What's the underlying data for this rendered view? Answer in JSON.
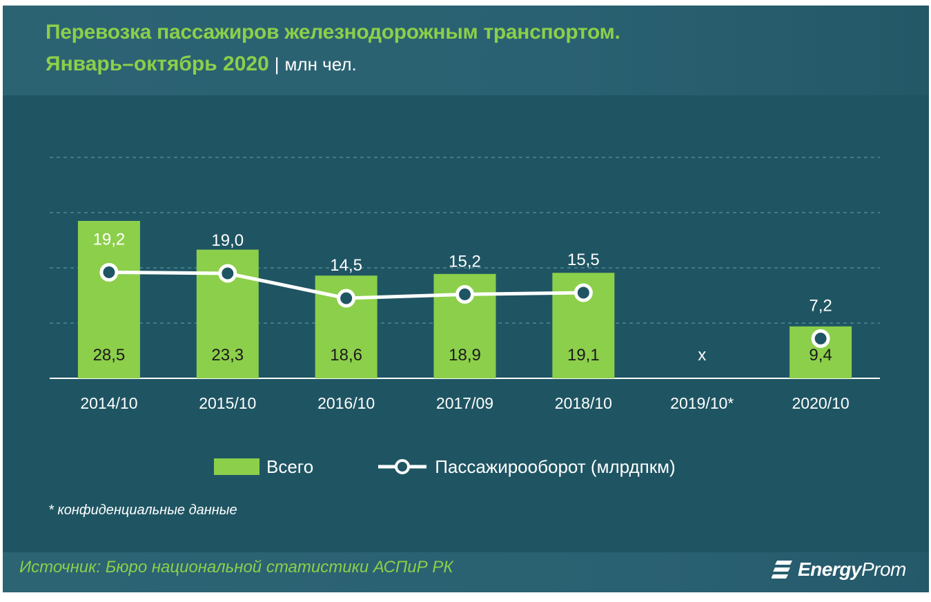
{
  "title": {
    "line1": "Перевозка пассажиров железнодорожным транспортом.",
    "period": "Январь–октябрь 2020",
    "separator": "|",
    "unit": "млн чел."
  },
  "chart_data": {
    "type": "bar",
    "categories": [
      "2014/10",
      "2015/10",
      "2016/10",
      "2017/09",
      "2018/10",
      "2019/10*",
      "2020/10"
    ],
    "series": [
      {
        "name": "Всего",
        "type": "bar",
        "values": [
          28.5,
          23.3,
          18.6,
          18.9,
          19.1,
          null,
          9.4
        ],
        "labels": [
          "28,5",
          "23,3",
          "18,6",
          "18,9",
          "19,1",
          "x",
          "9,4"
        ],
        "color": "#8ccf4a"
      },
      {
        "name": "Пассажирооборот (млрдпкм)",
        "type": "line",
        "values": [
          19.2,
          19.0,
          14.5,
          15.2,
          15.5,
          null,
          7.2
        ],
        "labels": [
          "19,2",
          "19,0",
          "14,5",
          "15,2",
          "15,5",
          "",
          "7,2"
        ],
        "color": "#ffffff"
      }
    ],
    "ylim": [
      0,
      40
    ],
    "grid": true,
    "legend": "bottom"
  },
  "footnote": "* конфиденциальные данные",
  "source": "Источник: Бюро национальной  статистики АСПиР РК",
  "brand": {
    "bold": "Energy",
    "light": "Prom"
  },
  "colors": {
    "background": "#1f5563",
    "accent": "#8ccf4a",
    "text": "#ffffff",
    "grid": "#4f8896"
  }
}
